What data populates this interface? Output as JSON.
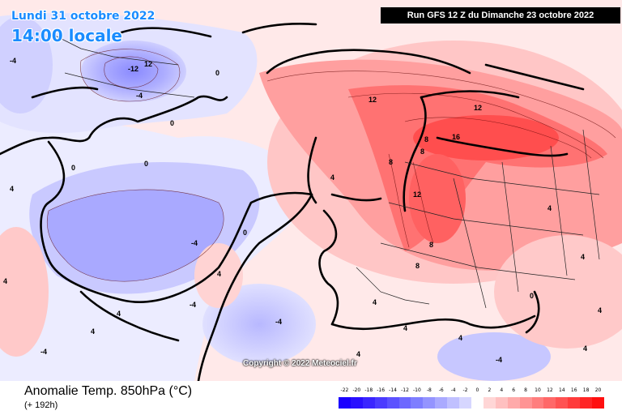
{
  "header": {
    "date": "Lundi 31 octobre 2022",
    "time": "14:00 locale",
    "run": "Run GFS 12 Z du Dimanche 23 octobre 2022",
    "copyright": "Copyright © 2022 Meteociel.fr"
  },
  "footer": {
    "variable": "Anomalie Temp. 850hPa (°C)",
    "lead": "(+ 192h)"
  },
  "legend": {
    "ticks": [
      "-22",
      "-20",
      "-18",
      "-16",
      "-14",
      "-12",
      "-10",
      "-8",
      "-6",
      "-4",
      "-2",
      "0",
      "2",
      "4",
      "6",
      "8",
      "10",
      "12",
      "14",
      "16",
      "18",
      "20"
    ],
    "colors": [
      "#1a00ff",
      "#2a10ff",
      "#3a25ff",
      "#4b3bff",
      "#5c52ff",
      "#6d68ff",
      "#7e7eff",
      "#9494ff",
      "#aaaaff",
      "#c0c0ff",
      "#d6d6ff",
      "#ffffff",
      "#ffd6d6",
      "#ffc0c0",
      "#ffaaaa",
      "#ff9494",
      "#ff7e7e",
      "#ff6868",
      "#ff5252",
      "#ff3b3b",
      "#ff2525",
      "#ff1010"
    ]
  },
  "contour_labels": [
    "-12",
    "12",
    "-4",
    "-4",
    "0",
    "0",
    "0",
    "0",
    "-4",
    "-4",
    "-4",
    "12",
    "12",
    "16",
    "8",
    "8",
    "8",
    "12",
    "8",
    "8",
    "4",
    "4",
    "4",
    "4",
    "4",
    "0",
    "-4",
    "4",
    "4",
    "4",
    "4",
    "4",
    "4",
    "4",
    "-4",
    "0",
    "4",
    "4"
  ]
}
